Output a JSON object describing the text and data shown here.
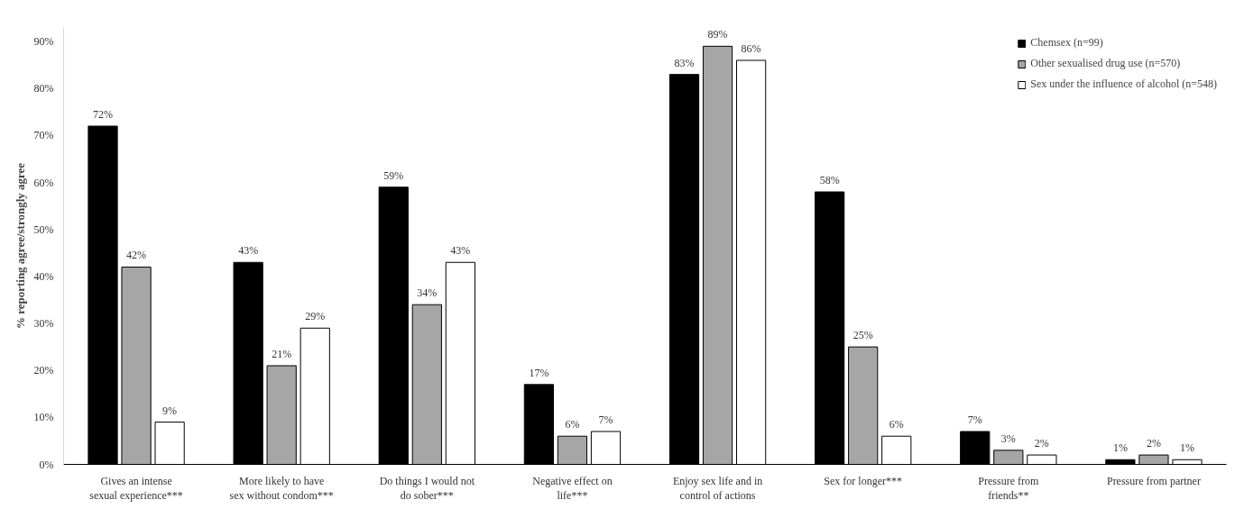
{
  "chart_data": {
    "type": "bar",
    "ylabel": "% reporting agree/strongly agree",
    "categories": [
      "Gives an intense sexual experience***",
      "More likely to have sex without condom***",
      "Do things I would not do sober***",
      "Negative effect on life***",
      "Enjoy sex life and in control of actions",
      "Sex for longer***",
      "Pressure from friends**",
      "Pressure from partner"
    ],
    "series": [
      {
        "name": "Chemsex (n=99)",
        "color": "#000000",
        "values": [
          72,
          43,
          59,
          17,
          83,
          58,
          7,
          1
        ],
        "value_labels": [
          "72%",
          "43%",
          "59%",
          "17%",
          "83%",
          "58%",
          "7%",
          "1%"
        ]
      },
      {
        "name": "Other sexualised drug use (n=570)",
        "color": "#a6a6a6",
        "values": [
          42,
          21,
          34,
          6,
          89,
          25,
          3,
          2
        ],
        "value_labels": [
          "42%",
          "21%",
          "34%",
          "6%",
          "89%",
          "25%",
          "3%",
          "2%"
        ]
      },
      {
        "name": "Sex under the influence of alcohol (n=548)",
        "color": "#ffffff",
        "values": [
          9,
          29,
          43,
          7,
          86,
          6,
          2,
          1
        ],
        "value_labels": [
          "9%",
          "29%",
          "43%",
          "7%",
          "86%",
          "6%",
          "2%",
          "1%"
        ]
      }
    ],
    "ylim": [
      0,
      93
    ],
    "yticks": [
      {
        "value": 0,
        "label": "0%"
      },
      {
        "value": 10,
        "label": "10%"
      },
      {
        "value": 20,
        "label": "20%"
      },
      {
        "value": 30,
        "label": "30%"
      },
      {
        "value": 40,
        "label": "40%"
      },
      {
        "value": 50,
        "label": "50%"
      },
      {
        "value": 60,
        "label": "60%"
      },
      {
        "value": 70,
        "label": "70%"
      },
      {
        "value": 80,
        "label": "80%"
      },
      {
        "value": 90,
        "label": "90%"
      }
    ],
    "grid": false,
    "legend": "top right"
  }
}
